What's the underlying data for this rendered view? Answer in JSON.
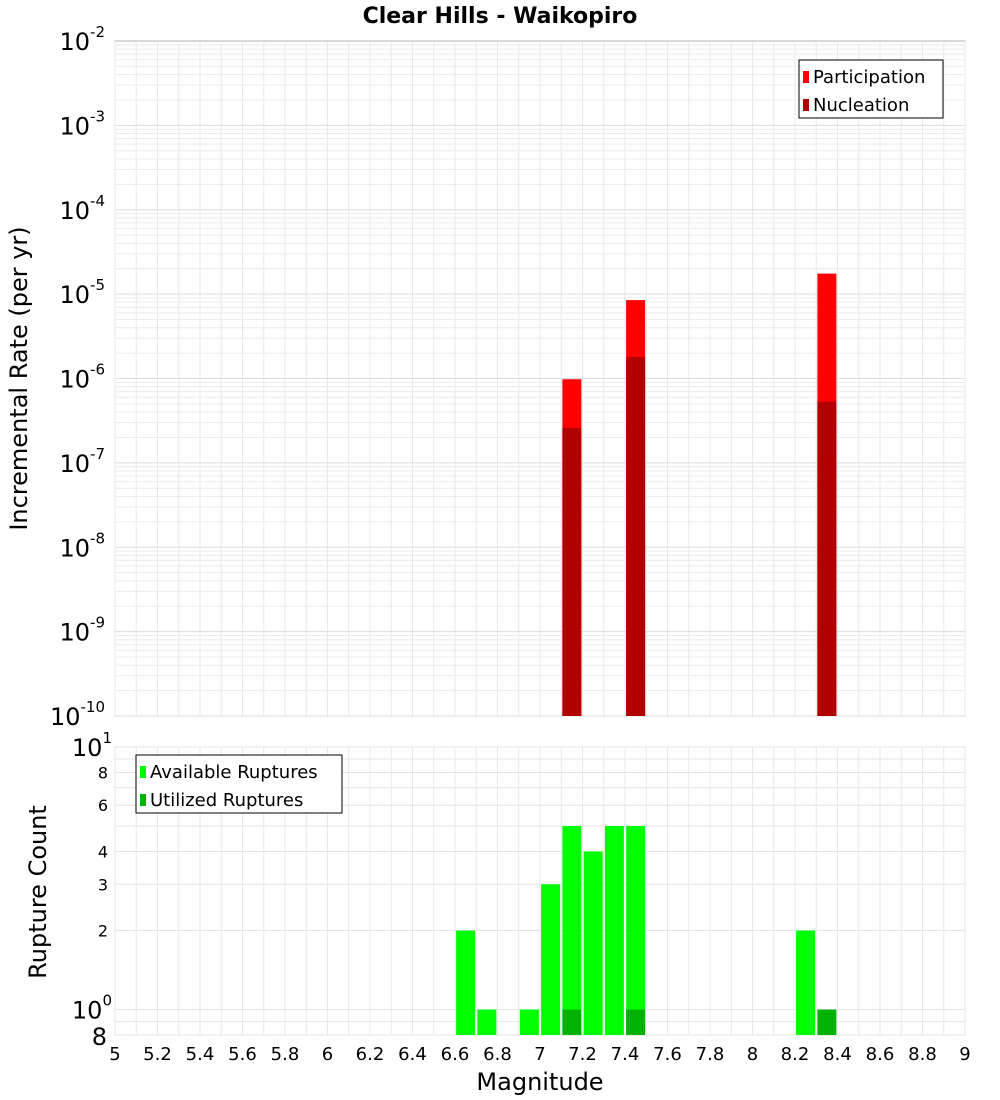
{
  "chart_data": [
    {
      "type": "bar",
      "title": "Clear Hills - Waikopiro",
      "ylabel": "Incremental Rate (per yr)",
      "yscale": "log",
      "ylim": [
        1e-10,
        0.01
      ],
      "xlim": [
        5,
        9
      ],
      "y_ticks": [
        {
          "value": 1e-10,
          "base": "10",
          "exp": "-10"
        },
        {
          "value": 1e-09,
          "base": "10",
          "exp": "-9"
        },
        {
          "value": 1e-08,
          "base": "10",
          "exp": "-8"
        },
        {
          "value": 1e-07,
          "base": "10",
          "exp": "-7"
        },
        {
          "value": 1e-06,
          "base": "10",
          "exp": "-6"
        },
        {
          "value": 1e-05,
          "base": "10",
          "exp": "-5"
        },
        {
          "value": 0.0001,
          "base": "10",
          "exp": "-4"
        },
        {
          "value": 0.001,
          "base": "10",
          "exp": "-3"
        },
        {
          "value": 0.01,
          "base": "10",
          "exp": "-2"
        }
      ],
      "legend_position": "top-right",
      "series": [
        {
          "name": "Participation",
          "color": "#ff0000",
          "x": [
            7.15,
            7.45,
            8.35
          ],
          "values": [
            9.8e-07,
            8.5e-06,
            1.75e-05
          ]
        },
        {
          "name": "Nucleation",
          "color": "#b00000",
          "x": [
            7.15,
            7.45,
            8.35
          ],
          "values": [
            2.6e-07,
            1.8e-06,
            5.3e-07
          ]
        }
      ]
    },
    {
      "type": "bar",
      "xlabel": "Magnitude",
      "ylabel": "Rupture Count",
      "yscale": "log",
      "ylim": [
        0.8,
        10
      ],
      "xlim": [
        5,
        9
      ],
      "x_ticks": [
        "5",
        "5.2",
        "5.4",
        "5.6",
        "5.8",
        "6",
        "6.2",
        "6.4",
        "6.6",
        "6.8",
        "7",
        "7.2",
        "7.4",
        "7.6",
        "7.8",
        "8",
        "8.2",
        "8.4",
        "8.6",
        "8.8",
        "9"
      ],
      "y_major_ticks": [
        {
          "value": 1,
          "base": "10",
          "exp": "0"
        },
        {
          "value": 10,
          "base": "10",
          "exp": "1"
        }
      ],
      "y_minor_ticks": [
        {
          "value": 0.8,
          "label": "8"
        },
        {
          "value": 2,
          "label": "2"
        },
        {
          "value": 3,
          "label": "3"
        },
        {
          "value": 4,
          "label": "4"
        },
        {
          "value": 6,
          "label": "6"
        },
        {
          "value": 8,
          "label": "8"
        }
      ],
      "legend_position": "top-left",
      "series": [
        {
          "name": "Available Ruptures",
          "color": "#00ff00",
          "x": [
            6.65,
            6.75,
            6.95,
            7.05,
            7.15,
            7.25,
            7.35,
            7.45,
            8.25
          ],
          "values": [
            2,
            1,
            1,
            3,
            5,
            4,
            5,
            5,
            2
          ]
        },
        {
          "name": "Utilized Ruptures",
          "color": "#00b200",
          "x": [
            7.15,
            7.45,
            8.35
          ],
          "values": [
            1,
            1,
            1
          ]
        }
      ]
    }
  ]
}
